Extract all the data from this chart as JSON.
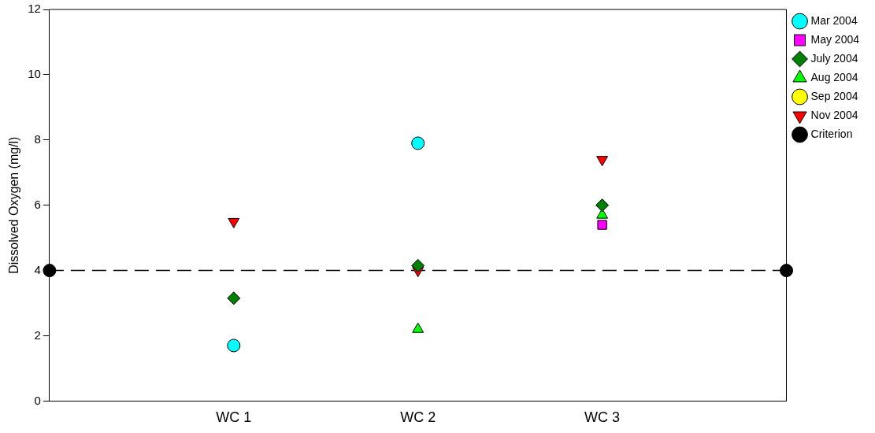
{
  "chart_data": {
    "type": "scatter",
    "ylabel": "Dissolved Oxygen (mg/l)",
    "categories": [
      null,
      "WC 1",
      "WC 2",
      "WC 3",
      null
    ],
    "ylim": [
      0,
      12
    ],
    "yticks": [
      0,
      2,
      4,
      6,
      8,
      10,
      12
    ],
    "grid": false,
    "legend": "right",
    "series": [
      {
        "name": "Mar 2004",
        "color": "#00ffff",
        "marker": "circle",
        "values": [
          null,
          1.7,
          7.9,
          null,
          null
        ]
      },
      {
        "name": "May 2004",
        "color": "#ff00ff",
        "marker": "square",
        "values": [
          null,
          null,
          null,
          5.4,
          null
        ]
      },
      {
        "name": "July 2004",
        "color": "#008000",
        "marker": "diamond",
        "values": [
          null,
          3.15,
          4.15,
          6.0,
          null
        ]
      },
      {
        "name": "Aug 2004",
        "color": "#00ff00",
        "marker": "triangle",
        "values": [
          null,
          null,
          2.2,
          5.7,
          null
        ]
      },
      {
        "name": "Sep 2004",
        "color": "#ffff00",
        "marker": "circle",
        "values": [
          null,
          null,
          null,
          null,
          null
        ]
      },
      {
        "name": "Nov 2004",
        "color": "#ff0000",
        "marker": "triangle-down",
        "values": [
          null,
          5.5,
          4.0,
          7.4,
          null
        ]
      },
      {
        "name": "Criterion",
        "type": "line",
        "color": "#000000",
        "marker": "circle",
        "line_style": "dashed",
        "values": [
          4,
          null,
          null,
          null,
          4
        ]
      }
    ]
  }
}
